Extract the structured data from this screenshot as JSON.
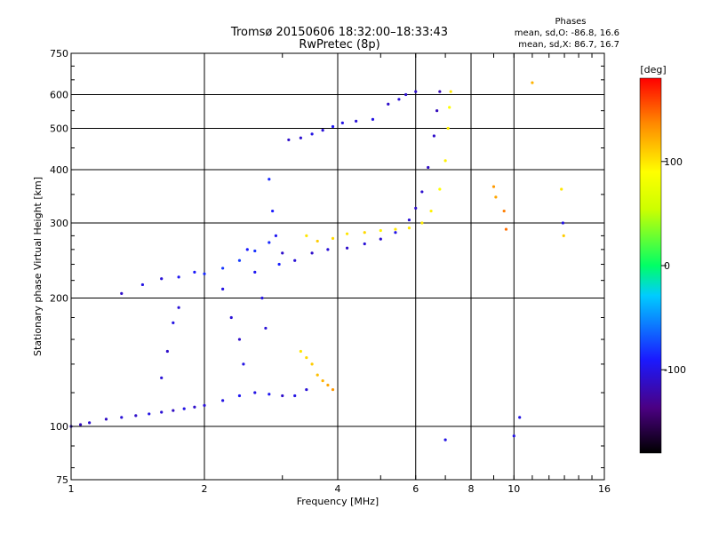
{
  "title_line1": "Tromsø 20150606 18:32:00–18:33:43",
  "title_line2": "RwPretec (8p)",
  "phase_header": "Phases",
  "phase_o": "mean, sd,O: -86.8, 16.6",
  "phase_x": "mean, sd,X: 86.7, 16.7",
  "chart_data": {
    "type": "scatter",
    "xlabel": "Frequency [MHz]",
    "ylabel": "Stationary phase Virtual Height [km]",
    "x_scale": "log",
    "y_scale": "log",
    "xlim": [
      1,
      16
    ],
    "ylim": [
      75,
      750
    ],
    "x_ticks": [
      {
        "value": 1,
        "label": "1"
      },
      {
        "value": 2,
        "label": "2"
      },
      {
        "value": 4,
        "label": "4"
      },
      {
        "value": 6,
        "label": "6"
      },
      {
        "value": 8,
        "label": "8"
      },
      {
        "value": 10,
        "label": "10"
      },
      {
        "value": 16,
        "label": "16"
      }
    ],
    "y_ticks": [
      {
        "value": 75,
        "label": "75"
      },
      {
        "value": 100,
        "label": "100"
      },
      {
        "value": 200,
        "label": "200"
      },
      {
        "value": 300,
        "label": "300"
      },
      {
        "value": 400,
        "label": "400"
      },
      {
        "value": 500,
        "label": "500"
      },
      {
        "value": 600,
        "label": "600"
      },
      {
        "value": 750,
        "label": "750"
      }
    ],
    "x_major_grid": [
      2,
      4,
      6,
      8,
      10
    ],
    "y_major_grid": [
      100,
      200,
      300,
      400,
      500,
      600
    ],
    "colorbar": {
      "label": "[deg]",
      "range": [
        -180,
        180
      ],
      "ticks": [
        {
          "value": 100,
          "label": "100"
        },
        {
          "value": 0,
          "label": "0"
        },
        {
          "value": -100,
          "label": "-100"
        }
      ]
    },
    "series": [
      {
        "points": [
          [
            1.0,
            100,
            -110
          ],
          [
            1.05,
            101,
            -115
          ],
          [
            1.1,
            102,
            -108
          ],
          [
            1.2,
            104,
            -112
          ],
          [
            1.3,
            105,
            -105
          ],
          [
            1.4,
            106,
            -110
          ],
          [
            1.5,
            107,
            -100
          ],
          [
            1.6,
            108,
            -106
          ],
          [
            1.7,
            109,
            -112
          ],
          [
            1.8,
            110,
            -100
          ],
          [
            1.9,
            111,
            -110
          ],
          [
            2.0,
            112,
            -105
          ],
          [
            2.2,
            115,
            -100
          ],
          [
            2.4,
            118,
            -95
          ],
          [
            2.6,
            120,
            -100
          ],
          [
            2.8,
            119,
            -95
          ],
          [
            3.0,
            118,
            -110
          ],
          [
            3.2,
            118,
            -100
          ],
          [
            3.4,
            122,
            -105
          ]
        ]
      },
      {
        "points": [
          [
            1.3,
            205,
            -110
          ],
          [
            1.45,
            215,
            -100
          ],
          [
            1.6,
            222,
            -105
          ],
          [
            1.75,
            224,
            -95
          ],
          [
            1.9,
            230,
            -92
          ],
          [
            2.0,
            228,
            -85
          ],
          [
            2.2,
            235,
            -80
          ],
          [
            2.4,
            245,
            -78
          ],
          [
            2.6,
            258,
            -82
          ],
          [
            2.8,
            270,
            -85
          ],
          [
            3.0,
            255,
            -110
          ],
          [
            3.2,
            245,
            -105
          ],
          [
            3.5,
            255,
            -110
          ],
          [
            3.8,
            260,
            -105
          ],
          [
            4.2,
            262,
            -110
          ],
          [
            4.6,
            268,
            -105
          ],
          [
            5.0,
            275,
            -108
          ],
          [
            5.4,
            285,
            -100
          ],
          [
            5.8,
            305,
            -105
          ],
          [
            6.0,
            325,
            -110
          ],
          [
            6.2,
            355,
            -108
          ],
          [
            6.4,
            405,
            -112
          ],
          [
            6.6,
            480,
            -110
          ],
          [
            6.7,
            550,
            -115
          ],
          [
            6.8,
            610,
            -118
          ]
        ]
      },
      {
        "points": [
          [
            3.1,
            470,
            -110
          ],
          [
            3.3,
            475,
            -108
          ],
          [
            3.5,
            485,
            -100
          ],
          [
            3.7,
            495,
            -105
          ],
          [
            3.9,
            505,
            -95
          ],
          [
            4.1,
            515,
            -100
          ],
          [
            4.4,
            520,
            -105
          ],
          [
            4.8,
            525,
            -100
          ],
          [
            5.2,
            570,
            -110
          ],
          [
            5.5,
            585,
            -105
          ],
          [
            5.7,
            600,
            -108
          ],
          [
            6.0,
            610,
            -110
          ]
        ]
      },
      {
        "points": [
          [
            3.4,
            280,
            100
          ],
          [
            3.6,
            272,
            110
          ],
          [
            3.9,
            276,
            105
          ],
          [
            4.2,
            283,
            100
          ],
          [
            4.6,
            285,
            105
          ],
          [
            5.0,
            288,
            95
          ],
          [
            5.4,
            290,
            100
          ],
          [
            5.8,
            292,
            100
          ],
          [
            6.2,
            300,
            98
          ],
          [
            6.5,
            320,
            95
          ],
          [
            6.8,
            360,
            90
          ],
          [
            7.0,
            420,
            95
          ],
          [
            7.1,
            500,
            95
          ],
          [
            7.15,
            560,
            90
          ],
          [
            7.2,
            610,
            100
          ]
        ]
      },
      {
        "points": [
          [
            3.3,
            150,
            100
          ],
          [
            3.4,
            145,
            105
          ],
          [
            3.5,
            140,
            110
          ],
          [
            3.6,
            132,
            115
          ],
          [
            3.7,
            128,
            120
          ],
          [
            3.8,
            125,
            125
          ],
          [
            3.9,
            122,
            130
          ]
        ]
      },
      {
        "points": [
          [
            2.2,
            210,
            -100
          ],
          [
            2.3,
            180,
            -105
          ],
          [
            2.4,
            160,
            -110
          ],
          [
            2.45,
            140,
            -100
          ],
          [
            2.5,
            260,
            -90
          ],
          [
            2.6,
            230,
            -95
          ],
          [
            2.7,
            200,
            -100
          ],
          [
            2.75,
            170,
            -105
          ],
          [
            2.8,
            380,
            -85
          ],
          [
            2.85,
            320,
            -90
          ],
          [
            2.9,
            280,
            -95
          ],
          [
            2.95,
            240,
            -88
          ]
        ]
      },
      {
        "points": [
          [
            1.6,
            130,
            -105
          ],
          [
            1.65,
            150,
            -110
          ],
          [
            1.7,
            175,
            -100
          ],
          [
            1.75,
            190,
            -105
          ]
        ]
      },
      {
        "points": [
          [
            9.0,
            365,
            130
          ],
          [
            9.1,
            345,
            125
          ],
          [
            9.5,
            320,
            140
          ],
          [
            9.6,
            290,
            145
          ],
          [
            12.8,
            360,
            100
          ],
          [
            12.9,
            300,
            -100
          ],
          [
            12.95,
            280,
            110
          ],
          [
            11.0,
            640,
            120
          ]
        ]
      },
      {
        "points": [
          [
            7.0,
            93,
            -100
          ],
          [
            10.0,
            95,
            -100
          ],
          [
            10.3,
            105,
            -100
          ]
        ]
      }
    ]
  }
}
